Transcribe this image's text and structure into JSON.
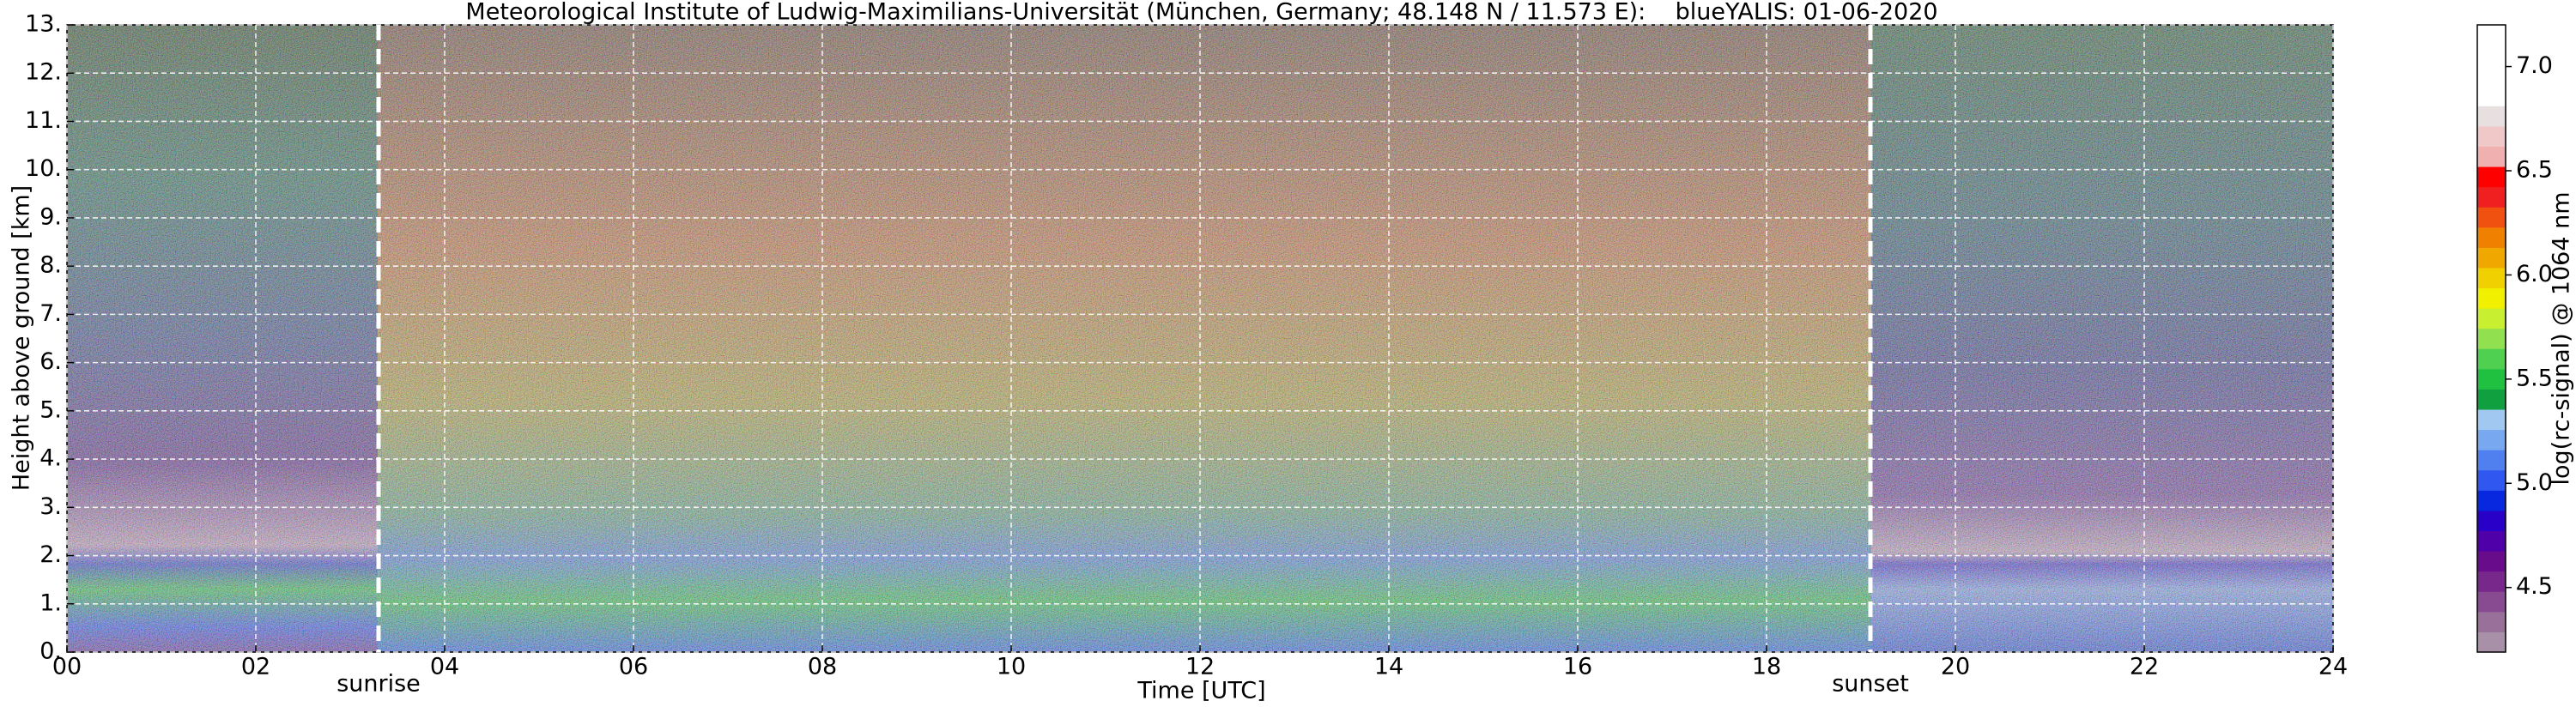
{
  "chart_data": {
    "type": "heatmap",
    "title": "Meteorological Institute of Ludwig-Maximilians-Universität (München, Germany; 48.148 N / 11.573 E):    blueYALIS: 01-06-2020",
    "x_label": "Time [UTC]",
    "y_label": "Height above ground [km]",
    "xlim": [
      0,
      24
    ],
    "xticks": [
      {
        "value": 0,
        "label": "00"
      },
      {
        "value": 2,
        "label": "02"
      },
      {
        "value": 4,
        "label": "04"
      },
      {
        "value": 6,
        "label": "06"
      },
      {
        "value": 8,
        "label": "08"
      },
      {
        "value": 10,
        "label": "10"
      },
      {
        "value": 12,
        "label": "12"
      },
      {
        "value": 14,
        "label": "14"
      },
      {
        "value": 16,
        "label": "16"
      },
      {
        "value": 18,
        "label": "18"
      },
      {
        "value": 20,
        "label": "20"
      },
      {
        "value": 22,
        "label": "22"
      },
      {
        "value": 24,
        "label": "24"
      }
    ],
    "ylim": [
      0,
      13
    ],
    "yticks": [
      {
        "value": 0,
        "label": "0."
      },
      {
        "value": 1,
        "label": "1."
      },
      {
        "value": 2,
        "label": "2."
      },
      {
        "value": 3,
        "label": "3."
      },
      {
        "value": 4,
        "label": "4."
      },
      {
        "value": 5,
        "label": "5."
      },
      {
        "value": 6,
        "label": "6."
      },
      {
        "value": 7,
        "label": "7."
      },
      {
        "value": 8,
        "label": "8."
      },
      {
        "value": 9,
        "label": "9."
      },
      {
        "value": 10,
        "label": "10."
      },
      {
        "value": 11,
        "label": "11."
      },
      {
        "value": 12,
        "label": "12."
      },
      {
        "value": 13,
        "label": "13."
      }
    ],
    "grid": true,
    "annotations": [
      {
        "text": "sunrise",
        "x": 3.3
      },
      {
        "text": "sunset",
        "x": 19.1
      }
    ],
    "colorbar": {
      "label": "log(rc-signal) @ 1064 nm",
      "lim": [
        4.19,
        7.2
      ],
      "ticks": [
        {
          "value": 4.5,
          "label": "4.5"
        },
        {
          "value": 5.0,
          "label": "5.0"
        },
        {
          "value": 5.5,
          "label": "5.5"
        },
        {
          "value": 6.0,
          "label": "6.0"
        },
        {
          "value": 6.5,
          "label": "6.5"
        },
        {
          "value": 7.0,
          "label": "7.0"
        }
      ],
      "colors": [
        "#a890a8",
        "#98709a",
        "#884a90",
        "#78288a",
        "#680c8c",
        "#5000a8",
        "#2800c8",
        "#0828e0",
        "#3058f0",
        "#5080f0",
        "#78a8f0",
        "#a0c8f0",
        "#10a040",
        "#20c040",
        "#50d050",
        "#90e050",
        "#c8f030",
        "#f0f000",
        "#f0d000",
        "#f0a800",
        "#f08000",
        "#f05010",
        "#f02020",
        "#ff0000",
        "#f0b0b0",
        "#f0c8c8",
        "#e8e0e0",
        "#ffffff",
        "#ffffff",
        "#ffffff",
        "#ffffff"
      ]
    }
  }
}
